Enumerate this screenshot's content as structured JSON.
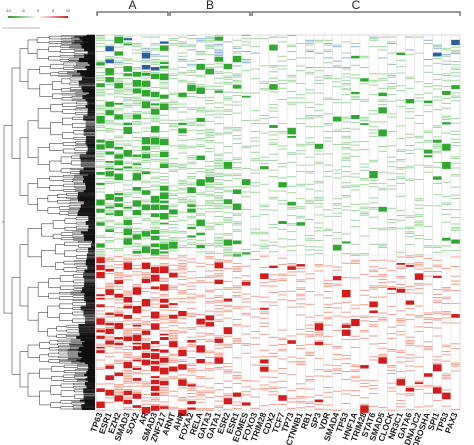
{
  "scale": {
    "ticks": [
      "-10",
      "-5",
      "0",
      "5",
      "10"
    ]
  },
  "groups": [
    {
      "label": "A"
    },
    {
      "label": "B"
    },
    {
      "label": "C"
    }
  ],
  "columns": [
    "TP63",
    "ESR1",
    "EZH2",
    "SMAD3",
    "SOX2",
    "AR",
    "SMAD3",
    "ZNF217",
    "ARNT",
    "AHR",
    "FOXA2",
    "RELA",
    "GATA3",
    "GATA1",
    "ESR2",
    "ESR1",
    "EOMES",
    "FOXO3",
    "TRIM28",
    "CDX2",
    "TCF7",
    "TP73",
    "CTNNB1",
    "RB1",
    "SP3",
    "VDR",
    "SMAD4",
    "TP53",
    "HNF1A",
    "TRIM28",
    "STAT6",
    "SMAD5",
    "CLOCK",
    "NR3C1",
    "GATA6",
    "DNAJC2",
    "DROSHA",
    "SPI1",
    "TP53",
    "PAX3"
  ]
}
